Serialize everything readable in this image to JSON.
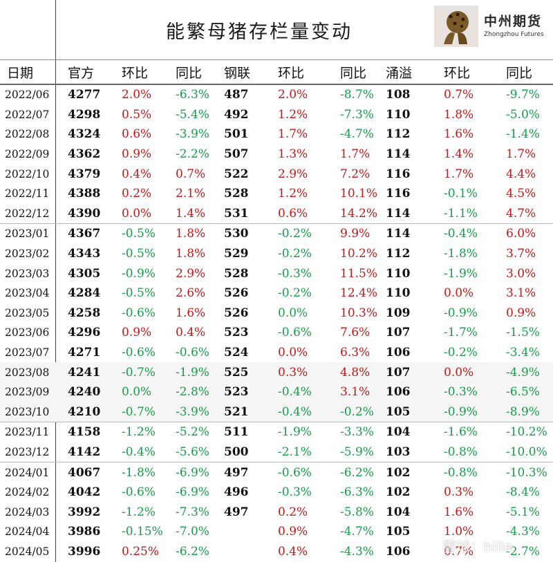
{
  "title": "能繁母猪存栏量变动",
  "logo": {
    "name_cn": "中州期货",
    "name_en": "Zhongzhou Futures"
  },
  "watermark": "雪球：hille",
  "colors": {
    "positive": "#c01818",
    "negative": "#1a9a4a"
  },
  "columns": [
    "日期",
    "官方",
    "环比",
    "同比",
    "钢联",
    "环比",
    "同比",
    "涌溢",
    "环比",
    "同比"
  ],
  "rows": [
    [
      "2022/06",
      "4277",
      "2.0%",
      "-6.3%",
      "487",
      "2.0%",
      "-8.7%",
      "108",
      "0.7%",
      "-9.7%"
    ],
    [
      "2022/07",
      "4298",
      "0.5%",
      "-5.4%",
      "492",
      "1.2%",
      "-7.3%",
      "110",
      "1.8%",
      "-5.0%"
    ],
    [
      "2022/08",
      "4324",
      "0.6%",
      "-3.9%",
      "501",
      "1.7%",
      "-4.7%",
      "112",
      "1.6%",
      "-1.4%"
    ],
    [
      "2022/09",
      "4362",
      "0.9%",
      "-2.2%",
      "507",
      "1.3%",
      "1.7%",
      "114",
      "1.4%",
      "1.7%"
    ],
    [
      "2022/10",
      "4379",
      "0.4%",
      "0.7%",
      "522",
      "2.9%",
      "7.2%",
      "116",
      "1.7%",
      "4.4%"
    ],
    [
      "2022/11",
      "4388",
      "0.2%",
      "2.1%",
      "528",
      "1.2%",
      "10.1%",
      "116",
      "-0.1%",
      "4.5%"
    ],
    [
      "2022/12",
      "4390",
      "0.0%",
      "1.4%",
      "531",
      "0.6%",
      "14.2%",
      "114",
      "-1.1%",
      "4.7%"
    ],
    [
      "2023/01",
      "4367",
      "-0.5%",
      "1.8%",
      "530",
      "-0.2%",
      "9.9%",
      "114",
      "-0.4%",
      "6.0%"
    ],
    [
      "2023/02",
      "4343",
      "-0.5%",
      "1.8%",
      "529",
      "-0.2%",
      "10.2%",
      "112",
      "-1.8%",
      "3.7%"
    ],
    [
      "2023/03",
      "4305",
      "-0.9%",
      "2.9%",
      "528",
      "-0.3%",
      "11.5%",
      "110",
      "-1.9%",
      "3.0%"
    ],
    [
      "2023/04",
      "4284",
      "-0.5%",
      "2.6%",
      "526",
      "-0.2%",
      "12.4%",
      "110",
      "0.0%",
      "3.1%"
    ],
    [
      "2023/05",
      "4258",
      "-0.6%",
      "1.6%",
      "526",
      "0.0%",
      "10.3%",
      "109",
      "-0.9%",
      "0.9%"
    ],
    [
      "2023/06",
      "4296",
      "0.9%",
      "0.4%",
      "523",
      "-0.6%",
      "7.6%",
      "107",
      "-1.7%",
      "-1.5%"
    ],
    [
      "2023/07",
      "4271",
      "-0.6%",
      "-0.6%",
      "524",
      "0.0%",
      "6.3%",
      "106",
      "-0.2%",
      "-3.4%"
    ],
    [
      "2023/08",
      "4241",
      "-0.7%",
      "-1.9%",
      "525",
      "0.3%",
      "4.8%",
      "107",
      "0.0%",
      "-4.9%"
    ],
    [
      "2023/09",
      "4240",
      "0.0%",
      "-2.8%",
      "523",
      "-0.4%",
      "3.1%",
      "106",
      "-0.3%",
      "-6.5%"
    ],
    [
      "2023/10",
      "4210",
      "-0.7%",
      "-3.9%",
      "521",
      "-0.4%",
      "-0.2%",
      "105",
      "-0.9%",
      "-8.9%"
    ],
    [
      "2023/11",
      "4158",
      "-1.2%",
      "-5.2%",
      "511",
      "-1.9%",
      "-3.3%",
      "104",
      "-1.6%",
      "-10.2%"
    ],
    [
      "2023/12",
      "4142",
      "-0.4%",
      "-5.6%",
      "500",
      "-2.1%",
      "-5.9%",
      "103",
      "-0.8%",
      "-10.0%"
    ],
    [
      "2024/01",
      "4067",
      "-1.8%",
      "-6.9%",
      "497",
      "-0.6%",
      "-6.2%",
      "102",
      "-0.8%",
      "-10.3%"
    ],
    [
      "2024/02",
      "4042",
      "-0.6%",
      "-6.9%",
      "496",
      "-0.3%",
      "-6.3%",
      "102",
      "0.3%",
      "-8.4%"
    ],
    [
      "2024/03",
      "3992",
      "-1.2%",
      "-7.3%",
      "497",
      "0.2%",
      "-5.8%",
      "104",
      "1.6%",
      "-5.1%"
    ],
    [
      "2024/04",
      "3986",
      "-0.15%",
      "-7.0%",
      "",
      "0.9%",
      "-4.7%",
      "105",
      "1.0%",
      "-4.3%"
    ],
    [
      "2024/05",
      "3996",
      "0.25%",
      "-6.2%",
      "",
      "0.4%",
      "-4.3%",
      "106",
      "0.7%",
      "-2.7%"
    ]
  ],
  "pct_colors": [
    [
      "pos",
      "neg",
      "pos",
      "neg",
      "pos",
      "neg"
    ],
    [
      "pos",
      "neg",
      "pos",
      "neg",
      "pos",
      "neg"
    ],
    [
      "pos",
      "neg",
      "pos",
      "neg",
      "pos",
      "neg"
    ],
    [
      "pos",
      "neg",
      "pos",
      "pos",
      "pos",
      "pos"
    ],
    [
      "pos",
      "pos",
      "pos",
      "pos",
      "pos",
      "pos"
    ],
    [
      "pos",
      "pos",
      "pos",
      "pos",
      "neg",
      "pos"
    ],
    [
      "pos",
      "pos",
      "pos",
      "pos",
      "neg",
      "pos"
    ],
    [
      "neg",
      "pos",
      "neg",
      "pos",
      "neg",
      "pos"
    ],
    [
      "neg",
      "pos",
      "neg",
      "pos",
      "neg",
      "pos"
    ],
    [
      "neg",
      "pos",
      "neg",
      "pos",
      "neg",
      "pos"
    ],
    [
      "neg",
      "pos",
      "neg",
      "pos",
      "pos",
      "pos"
    ],
    [
      "neg",
      "pos",
      "neg",
      "pos",
      "neg",
      "pos"
    ],
    [
      "pos",
      "pos",
      "neg",
      "pos",
      "neg",
      "neg"
    ],
    [
      "neg",
      "neg",
      "pos",
      "pos",
      "neg",
      "neg"
    ],
    [
      "neg",
      "neg",
      "pos",
      "pos",
      "pos",
      "neg"
    ],
    [
      "neg",
      "neg",
      "neg",
      "pos",
      "neg",
      "neg"
    ],
    [
      "neg",
      "neg",
      "neg",
      "neg",
      "neg",
      "neg"
    ],
    [
      "neg",
      "neg",
      "neg",
      "neg",
      "neg",
      "neg"
    ],
    [
      "neg",
      "neg",
      "neg",
      "neg",
      "neg",
      "neg"
    ],
    [
      "neg",
      "neg",
      "neg",
      "neg",
      "neg",
      "neg"
    ],
    [
      "neg",
      "neg",
      "neg",
      "neg",
      "pos",
      "neg"
    ],
    [
      "neg",
      "neg",
      "pos",
      "neg",
      "pos",
      "neg"
    ],
    [
      "neg",
      "neg",
      "pos",
      "neg",
      "pos",
      "neg"
    ],
    [
      "pos",
      "neg",
      "pos",
      "neg",
      "pos",
      "neg"
    ]
  ],
  "group_breaks": [
    7,
    17,
    19
  ],
  "shaded_rows": [
    14,
    15,
    16
  ]
}
